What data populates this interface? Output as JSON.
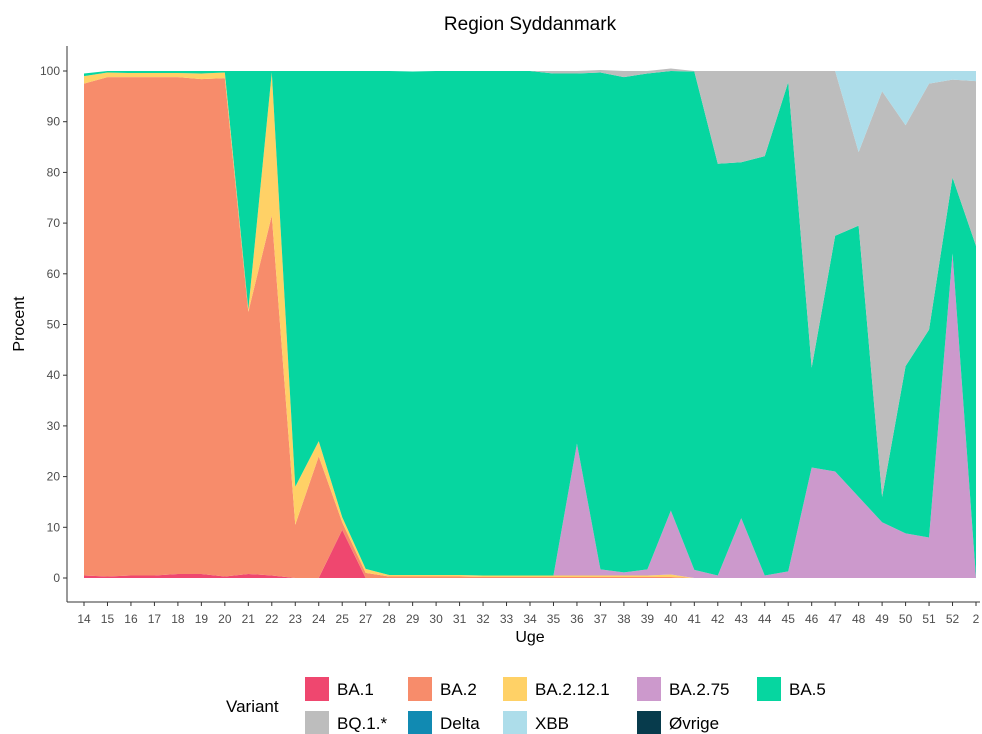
{
  "chart_data": {
    "type": "area",
    "stacked": true,
    "title": "Region Syddanmark",
    "xlabel": "Uge",
    "ylabel": "Procent",
    "ylim": [
      0,
      100
    ],
    "yticks": [
      0,
      10,
      20,
      30,
      40,
      50,
      60,
      70,
      80,
      90,
      100
    ],
    "grid": false,
    "legend": {
      "title": "Variant",
      "placement": "bottom"
    },
    "x": [
      "14",
      "15",
      "16",
      "17",
      "18",
      "19",
      "20",
      "21",
      "22",
      "23",
      "24",
      "25",
      "27",
      "28",
      "29",
      "30",
      "31",
      "32",
      "33",
      "34",
      "35",
      "36",
      "37",
      "38",
      "39",
      "40",
      "41",
      "42",
      "43",
      "44",
      "45",
      "46",
      "47",
      "48",
      "49",
      "50",
      "51",
      "52",
      "2"
    ],
    "series": [
      {
        "name": "BA.1",
        "color": "#EF476F",
        "values": [
          0.5,
          0.3,
          0.5,
          0.5,
          0.8,
          0.8,
          0.3,
          0.8,
          0.5,
          0,
          0,
          9.5,
          0,
          0,
          0,
          0,
          0,
          0,
          0,
          0,
          0,
          0,
          0,
          0,
          0,
          0,
          0,
          0,
          0,
          0,
          0,
          0,
          0,
          0,
          0,
          0,
          0,
          0,
          0
        ]
      },
      {
        "name": "BA.2",
        "color": "#F78C6B",
        "values": [
          97,
          98.5,
          98.3,
          98.3,
          98,
          97.6,
          98.3,
          51.7,
          71,
          10.5,
          24,
          1.5,
          1,
          0.3,
          0.3,
          0.3,
          0.3,
          0.2,
          0.2,
          0.2,
          0.2,
          0.2,
          0.2,
          0.2,
          0.2,
          0.2,
          0,
          0,
          0,
          0,
          0,
          0,
          0,
          0,
          0,
          0,
          0,
          0,
          0
        ]
      },
      {
        "name": "BA.2.12.1",
        "color": "#FFD166",
        "values": [
          1.5,
          0.9,
          0.8,
          0.8,
          0.8,
          1.1,
          1.1,
          0.5,
          28.2,
          7.5,
          3,
          1,
          0.8,
          0.3,
          0.3,
          0.3,
          0.3,
          0.3,
          0.3,
          0.3,
          0.3,
          0.3,
          0.3,
          0.3,
          0.3,
          0.5,
          0,
          0,
          0,
          0,
          0,
          0,
          0,
          0,
          0,
          0,
          0,
          0,
          0
        ]
      },
      {
        "name": "BA.2.75",
        "color": "#CC99CC",
        "values": [
          0,
          0,
          0,
          0,
          0,
          0,
          0,
          0,
          0,
          0,
          0,
          0,
          0,
          0,
          0,
          0,
          0,
          0,
          0,
          0,
          0,
          26,
          1.2,
          0.6,
          1.2,
          12.6,
          1.6,
          0.5,
          11.8,
          0.5,
          1.3,
          21.8,
          21,
          16,
          11,
          8.8,
          8,
          64,
          0
        ]
      },
      {
        "name": "BA.5",
        "color": "#06D6A0",
        "values": [
          0.5,
          0.3,
          0.4,
          0.4,
          0.4,
          0.5,
          0.3,
          47,
          0.3,
          82,
          73,
          88,
          98.2,
          99.4,
          99.3,
          99.4,
          99.4,
          99.5,
          99.5,
          99.5,
          99,
          73,
          98,
          97.7,
          97.8,
          86.7,
          98.3,
          81.2,
          70.2,
          82.7,
          96.5,
          19.7,
          46.5,
          53.5,
          5,
          33,
          41,
          15,
          65.5
        ]
      },
      {
        "name": "BQ.1.*",
        "color": "#BDBDBD",
        "values": [
          0,
          0,
          0,
          0,
          0,
          0,
          0,
          0,
          0,
          0,
          0,
          0,
          0,
          0,
          0,
          0,
          0,
          0,
          0,
          0,
          0.5,
          0.5,
          0.5,
          1.2,
          0.5,
          0.5,
          0.1,
          18.3,
          18,
          16.8,
          2.2,
          58.5,
          32.5,
          14.5,
          80,
          47.5,
          48.5,
          19.3,
          32.5
        ]
      },
      {
        "name": "Delta",
        "color": "#118AB2",
        "values": [
          0,
          0,
          0,
          0,
          0,
          0,
          0,
          0,
          0,
          0,
          0,
          0,
          0,
          0,
          0,
          0,
          0,
          0,
          0,
          0,
          0,
          0,
          0,
          0,
          0,
          0,
          0,
          0,
          0,
          0,
          0,
          0,
          0,
          0,
          0,
          0,
          0,
          0,
          0
        ]
      },
      {
        "name": "XBB",
        "color": "#ADDDEA",
        "values": [
          0,
          0,
          0,
          0,
          0,
          0,
          0,
          0,
          0,
          0,
          0,
          0,
          0,
          0,
          0,
          0,
          0,
          0,
          0,
          0,
          0,
          0,
          0,
          0,
          0,
          0,
          0,
          0,
          0,
          0,
          0,
          0,
          0,
          16,
          4,
          10.7,
          2.5,
          1.7,
          2
        ]
      },
      {
        "name": "Øvrige",
        "color": "#073B4C",
        "values": [
          0,
          0,
          0,
          0,
          0,
          0,
          0,
          0,
          0,
          0,
          0,
          0,
          0,
          0,
          0,
          0,
          0,
          0,
          0,
          0,
          0,
          0,
          0,
          0,
          0,
          0,
          0,
          0,
          0,
          0,
          0,
          0,
          0,
          0,
          0,
          0,
          0,
          0,
          0
        ]
      }
    ]
  }
}
